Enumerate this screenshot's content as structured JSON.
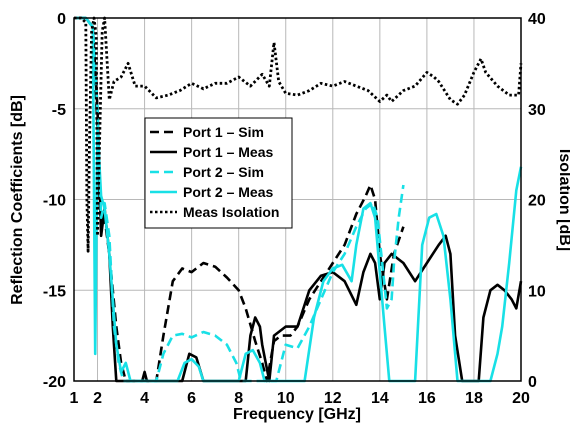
{
  "chart_data": {
    "type": "line",
    "xlabel": "Frequency [GHz]",
    "ylabel": "Reflection Coefficients [dB]",
    "y2label": "Isolation [dB]",
    "xlim": [
      1,
      20
    ],
    "ylim": [
      -20,
      0
    ],
    "y2lim": [
      0,
      40
    ],
    "x_ticks": [
      "1",
      "2",
      "4",
      "6",
      "8",
      "10",
      "12",
      "14",
      "16",
      "18",
      "20"
    ],
    "y_ticks": [
      "0",
      "-5",
      "-10",
      "-15",
      "-20"
    ],
    "y2_ticks": [
      "40",
      "30",
      "20",
      "10",
      "0"
    ],
    "grid": true,
    "legend_position": "center-left",
    "series": [
      {
        "name": "Port 1 – Sim",
        "axis": "left",
        "color": "#000000",
        "style": "dashed",
        "points": [
          [
            1.1,
            0
          ],
          [
            1.5,
            0
          ],
          [
            1.8,
            -0.5
          ],
          [
            2.0,
            -6
          ],
          [
            2.1,
            -10.5
          ],
          [
            2.3,
            -11
          ],
          [
            2.5,
            -13
          ],
          [
            2.8,
            -17
          ],
          [
            3.0,
            -19
          ],
          [
            3.2,
            -20
          ],
          [
            4.5,
            -20
          ],
          [
            4.8,
            -17.5
          ],
          [
            5.2,
            -14.5
          ],
          [
            5.6,
            -13.8
          ],
          [
            6.0,
            -14
          ],
          [
            6.5,
            -13.5
          ],
          [
            7.0,
            -13.7
          ],
          [
            7.5,
            -14.3
          ],
          [
            8.0,
            -15
          ],
          [
            8.3,
            -16
          ],
          [
            8.7,
            -17.8
          ],
          [
            9.0,
            -19
          ],
          [
            9.2,
            -20
          ],
          [
            9.5,
            -17.8
          ],
          [
            9.8,
            -17.5
          ],
          [
            10.2,
            -17.5
          ],
          [
            10.5,
            -17
          ],
          [
            11.0,
            -15.5
          ],
          [
            11.5,
            -14.5
          ],
          [
            12.0,
            -13.5
          ],
          [
            12.5,
            -12.5
          ],
          [
            13.0,
            -10.8
          ],
          [
            13.4,
            -9.8
          ],
          [
            13.6,
            -9.2
          ],
          [
            13.8,
            -10
          ],
          [
            14.0,
            -13
          ],
          [
            14.3,
            -15.5
          ],
          [
            14.6,
            -13
          ],
          [
            15.0,
            -11.5
          ]
        ]
      },
      {
        "name": "Port 1 – Meas",
        "axis": "left",
        "color": "#000000",
        "style": "solid",
        "points": [
          [
            1.1,
            0
          ],
          [
            1.5,
            0
          ],
          [
            1.8,
            -0.5
          ],
          [
            2.0,
            -5
          ],
          [
            2.15,
            -12
          ],
          [
            2.3,
            -10.5
          ],
          [
            2.5,
            -13
          ],
          [
            2.65,
            -17
          ],
          [
            2.8,
            -20
          ],
          [
            3.9,
            -20
          ],
          [
            4.0,
            -19.5
          ],
          [
            4.1,
            -20
          ],
          [
            5.6,
            -20
          ],
          [
            5.9,
            -18.5
          ],
          [
            6.2,
            -18.7
          ],
          [
            6.5,
            -20
          ],
          [
            8.3,
            -20
          ],
          [
            8.5,
            -17.5
          ],
          [
            8.7,
            -16.5
          ],
          [
            8.9,
            -17
          ],
          [
            9.0,
            -18
          ],
          [
            9.3,
            -20
          ],
          [
            9.5,
            -17.5
          ],
          [
            10.0,
            -17
          ],
          [
            10.5,
            -17
          ],
          [
            11.0,
            -15
          ],
          [
            11.5,
            -14.2
          ],
          [
            12.0,
            -14
          ],
          [
            12.5,
            -14.5
          ],
          [
            13.0,
            -15.8
          ],
          [
            13.3,
            -14
          ],
          [
            13.6,
            -13
          ],
          [
            13.8,
            -13.5
          ],
          [
            14.0,
            -15.5
          ],
          [
            14.2,
            -13.5
          ],
          [
            14.5,
            -13
          ],
          [
            15.0,
            -13.5
          ],
          [
            15.5,
            -14.5
          ],
          [
            16.0,
            -13.5
          ],
          [
            16.5,
            -12.5
          ],
          [
            16.8,
            -12
          ],
          [
            17.0,
            -13
          ],
          [
            17.2,
            -17.5
          ],
          [
            17.5,
            -20
          ],
          [
            18.2,
            -20
          ],
          [
            18.4,
            -16.5
          ],
          [
            18.7,
            -15
          ],
          [
            19.0,
            -14.7
          ],
          [
            19.3,
            -15
          ],
          [
            19.6,
            -15.5
          ],
          [
            19.8,
            -16
          ],
          [
            20.0,
            -14.5
          ]
        ]
      },
      {
        "name": "Port 2 – Sim",
        "axis": "left",
        "color": "#18e0e6",
        "style": "dashed",
        "points": [
          [
            1.1,
            0
          ],
          [
            1.5,
            0
          ],
          [
            1.8,
            -0.5
          ],
          [
            2.0,
            -5
          ],
          [
            2.15,
            -11
          ],
          [
            2.3,
            -10.2
          ],
          [
            2.5,
            -12
          ],
          [
            2.7,
            -17
          ],
          [
            2.9,
            -19
          ],
          [
            3.1,
            -20
          ],
          [
            4.5,
            -20
          ],
          [
            4.8,
            -18.5
          ],
          [
            5.2,
            -17.5
          ],
          [
            5.6,
            -17.4
          ],
          [
            6.0,
            -17.6
          ],
          [
            6.5,
            -17.3
          ],
          [
            7.0,
            -17.5
          ],
          [
            7.5,
            -18
          ],
          [
            7.9,
            -19
          ],
          [
            8.1,
            -20
          ],
          [
            9.6,
            -20
          ],
          [
            10.0,
            -18
          ],
          [
            10.5,
            -18.2
          ],
          [
            11.0,
            -17
          ],
          [
            11.5,
            -15.5
          ],
          [
            12.0,
            -14
          ],
          [
            12.5,
            -13
          ],
          [
            13.0,
            -11.5
          ],
          [
            13.4,
            -10.5
          ],
          [
            13.7,
            -10.2
          ],
          [
            13.9,
            -11
          ],
          [
            14.1,
            -13.5
          ],
          [
            14.3,
            -16
          ],
          [
            14.5,
            -15.5
          ],
          [
            14.6,
            -13.5
          ],
          [
            14.8,
            -11
          ],
          [
            15.0,
            -9.2
          ]
        ]
      },
      {
        "name": "Port 2 – Meas",
        "axis": "left",
        "color": "#18e0e6",
        "style": "solid",
        "points": [
          [
            1.1,
            0
          ],
          [
            1.5,
            0
          ],
          [
            1.8,
            -0.5
          ],
          [
            1.9,
            -18.5
          ],
          [
            2.0,
            -6
          ],
          [
            2.15,
            -9.8
          ],
          [
            2.3,
            -10.5
          ],
          [
            2.5,
            -13
          ],
          [
            2.8,
            -18
          ],
          [
            3.0,
            -19.5
          ],
          [
            3.2,
            -19
          ],
          [
            3.4,
            -20
          ],
          [
            5.4,
            -20
          ],
          [
            5.7,
            -19
          ],
          [
            6.0,
            -18.8
          ],
          [
            6.3,
            -19.2
          ],
          [
            6.5,
            -20
          ],
          [
            8.0,
            -20
          ],
          [
            8.3,
            -18.5
          ],
          [
            8.6,
            -18.3
          ],
          [
            8.9,
            -19
          ],
          [
            9.1,
            -20
          ],
          [
            10.8,
            -20
          ],
          [
            11.2,
            -16.5
          ],
          [
            11.6,
            -14.5
          ],
          [
            12.0,
            -13.8
          ],
          [
            12.4,
            -13.6
          ],
          [
            12.8,
            -14.5
          ],
          [
            13.0,
            -12.5
          ],
          [
            13.3,
            -10.5
          ],
          [
            13.6,
            -10.2
          ],
          [
            13.8,
            -11
          ],
          [
            14.0,
            -14
          ],
          [
            14.2,
            -17
          ],
          [
            14.4,
            -20
          ],
          [
            15.5,
            -20
          ],
          [
            15.8,
            -12.5
          ],
          [
            16.1,
            -11
          ],
          [
            16.4,
            -10.8
          ],
          [
            16.7,
            -12
          ],
          [
            17.0,
            -15.5
          ],
          [
            17.3,
            -20
          ],
          [
            18.7,
            -20
          ],
          [
            19.0,
            -18.5
          ],
          [
            19.2,
            -17
          ],
          [
            19.5,
            -13.5
          ],
          [
            19.8,
            -9.5
          ],
          [
            20.0,
            -8.2
          ]
        ]
      },
      {
        "name": "Meas Isolation",
        "axis": "right",
        "color": "#000000",
        "style": "dotted",
        "points": [
          [
            1.0,
            40
          ],
          [
            1.3,
            40
          ],
          [
            1.5,
            39.5
          ],
          [
            1.55,
            20
          ],
          [
            1.6,
            14.3
          ],
          [
            1.65,
            25
          ],
          [
            1.75,
            38.5
          ],
          [
            1.85,
            40
          ],
          [
            1.95,
            38
          ],
          [
            2.0,
            16
          ],
          [
            2.1,
            28
          ],
          [
            2.2,
            38.5
          ],
          [
            2.3,
            40
          ],
          [
            2.5,
            31
          ],
          [
            2.7,
            33
          ],
          [
            3.0,
            33.5
          ],
          [
            3.3,
            35
          ],
          [
            3.6,
            32.5
          ],
          [
            4.0,
            32.5
          ],
          [
            4.5,
            31.2
          ],
          [
            5.0,
            31.5
          ],
          [
            5.5,
            32
          ],
          [
            6.0,
            32.8
          ],
          [
            6.5,
            32.2
          ],
          [
            7.0,
            32.8
          ],
          [
            7.5,
            32.8
          ],
          [
            8.0,
            33.5
          ],
          [
            8.5,
            32.5
          ],
          [
            9.0,
            33.8
          ],
          [
            9.3,
            32.5
          ],
          [
            9.5,
            37.3
          ],
          [
            9.7,
            33
          ],
          [
            10.0,
            31.7
          ],
          [
            10.5,
            31.5
          ],
          [
            11.0,
            32
          ],
          [
            11.5,
            32.8
          ],
          [
            12.0,
            32.5
          ],
          [
            12.5,
            33
          ],
          [
            13.0,
            32.5
          ],
          [
            13.5,
            32
          ],
          [
            14.0,
            30.8
          ],
          [
            14.3,
            31.5
          ],
          [
            14.5,
            30.8
          ],
          [
            15.0,
            32
          ],
          [
            15.5,
            32.5
          ],
          [
            16.0,
            34
          ],
          [
            16.3,
            33.5
          ],
          [
            16.5,
            33
          ],
          [
            17.0,
            31
          ],
          [
            17.3,
            30.5
          ],
          [
            17.6,
            31.5
          ],
          [
            18.0,
            34
          ],
          [
            18.3,
            35.5
          ],
          [
            18.5,
            34
          ],
          [
            19.0,
            32.5
          ],
          [
            19.5,
            31.5
          ],
          [
            19.9,
            31.5
          ],
          [
            20.0,
            35
          ]
        ]
      }
    ]
  }
}
